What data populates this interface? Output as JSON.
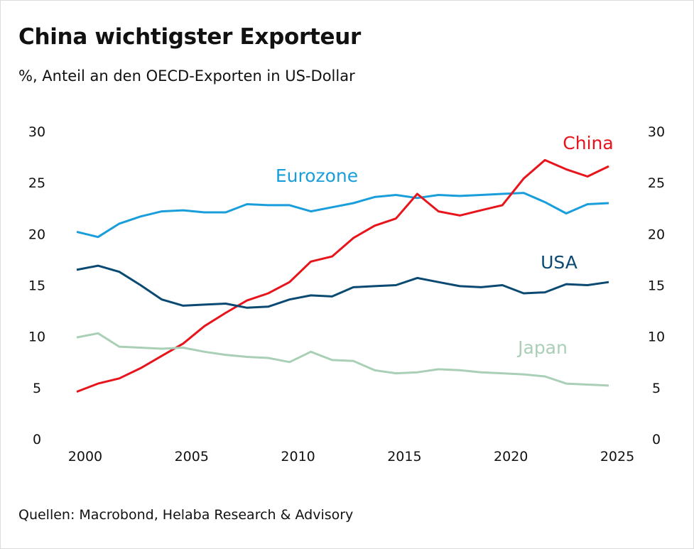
{
  "chart_data": {
    "type": "line",
    "title": "China wichtigster Exporteur",
    "subtitle": "%, Anteil an den OECD-Exporten in US-Dollar",
    "source": "Quellen: Macrobond, Helaba Research & Advisory",
    "x": [
      1999.6,
      2000.6,
      2001.6,
      2002.6,
      2003.6,
      2004.6,
      2005.6,
      2006.6,
      2007.6,
      2008.6,
      2009.6,
      2010.6,
      2011.6,
      2012.6,
      2013.6,
      2014.6,
      2015.6,
      2016.6,
      2017.6,
      2018.6,
      2019.6,
      2020.6,
      2021.6,
      2022.6,
      2023.6,
      2024.6
    ],
    "xlim": [
      1999.4,
      2025.2
    ],
    "ylim": [
      0,
      30
    ],
    "x_ticks": [
      "2000",
      "2005",
      "2010",
      "2015",
      "2020",
      "2025"
    ],
    "y_ticks_left": [
      "0",
      "5",
      "10",
      "15",
      "20",
      "25",
      "30"
    ],
    "y_ticks_right": [
      "0",
      "5",
      "10",
      "15",
      "20",
      "25",
      "30"
    ],
    "grid": false,
    "series": [
      {
        "name": "Eurozone",
        "color": "#1a9edb",
        "values": [
          20.2,
          19.7,
          21.0,
          21.7,
          22.2,
          22.3,
          22.1,
          22.1,
          22.9,
          22.8,
          22.8,
          22.2,
          22.6,
          23.0,
          23.6,
          23.8,
          23.5,
          23.8,
          23.7,
          23.8,
          23.9,
          24.0,
          23.1,
          22.0,
          22.9,
          23.0
        ]
      },
      {
        "name": "China",
        "color": "#e8141c",
        "values": [
          4.6,
          5.4,
          5.9,
          6.9,
          8.1,
          9.3,
          11.0,
          12.3,
          13.5,
          14.2,
          15.3,
          17.3,
          17.8,
          19.6,
          20.8,
          21.5,
          23.9,
          22.2,
          21.8,
          22.3,
          22.8,
          25.4,
          27.2,
          26.3,
          25.6,
          26.6
        ]
      },
      {
        "name": "USA",
        "color": "#0a4a72",
        "values": [
          16.5,
          16.9,
          16.3,
          15.0,
          13.6,
          13.0,
          13.1,
          13.2,
          12.8,
          12.9,
          13.6,
          14.0,
          13.9,
          14.8,
          14.9,
          15.0,
          15.7,
          15.3,
          14.9,
          14.8,
          15.0,
          14.2,
          14.3,
          15.1,
          15.0,
          15.3
        ]
      },
      {
        "name": "Japan",
        "color": "#a9cfb7",
        "values": [
          9.9,
          10.3,
          9.0,
          8.9,
          8.8,
          8.9,
          8.5,
          8.2,
          8.0,
          7.9,
          7.5,
          8.5,
          7.7,
          7.6,
          6.7,
          6.4,
          6.5,
          6.8,
          6.7,
          6.5,
          6.4,
          6.3,
          6.1,
          5.4,
          5.3,
          5.2
        ]
      }
    ]
  }
}
